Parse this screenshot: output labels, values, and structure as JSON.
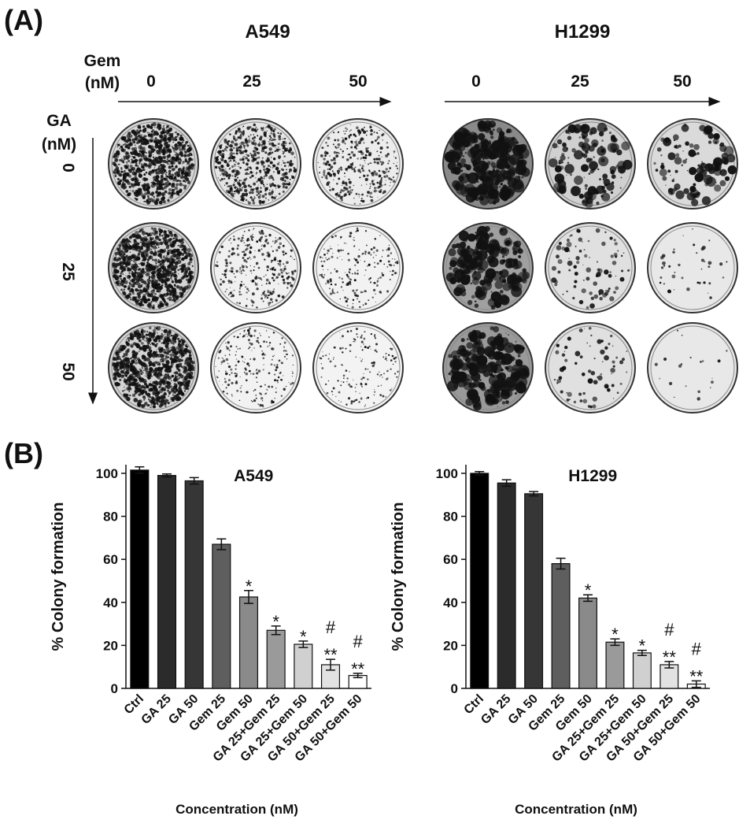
{
  "panel_a": {
    "label": "(A)",
    "lines": [
      "A549",
      "H1299"
    ],
    "gem_label": [
      "Gem",
      "(nM)"
    ],
    "gem_doses": [
      "0",
      "25",
      "50"
    ],
    "ga_label": [
      "GA",
      "(nM)"
    ],
    "ga_doses": [
      "0",
      "25",
      "50"
    ]
  },
  "panel_b": {
    "label": "(B)"
  },
  "chart_data": [
    {
      "type": "bar",
      "title": "A549",
      "y_label": "% Colony formation",
      "x_label": "Concentration (nM)",
      "categories": [
        "Ctrl",
        "GA 25",
        "GA 50",
        "Gem 25",
        "Gem 50",
        "GA 25+Gem 25",
        "GA 25+Gem 50",
        "GA 50+Gem 25",
        "GA 50+Gem 50"
      ],
      "values": [
        101.5,
        99,
        96.5,
        67,
        42.5,
        27,
        20.5,
        11,
        6
      ],
      "errors": [
        1.5,
        0.7,
        1.5,
        2.5,
        3,
        2,
        1.5,
        2.5,
        1
      ],
      "colors": [
        "#000000",
        "#2b2b2b",
        "#363636",
        "#5e5e5e",
        "#8a8a8a",
        "#9a9a9a",
        "#d0d0d0",
        "#e2e2e2",
        "#ffffff"
      ],
      "annotations": [
        null,
        null,
        null,
        null,
        [
          "*"
        ],
        [
          "*"
        ],
        [
          "*"
        ],
        [
          "#",
          "**"
        ],
        [
          "#",
          "**"
        ]
      ],
      "ylim": [
        0,
        104
      ],
      "yticks": [
        0,
        20,
        40,
        60,
        80,
        100
      ]
    },
    {
      "type": "bar",
      "title": "H1299",
      "y_label": "% Colony formation",
      "x_label": "Concentration (nM)",
      "categories": [
        "Ctrl",
        "GA 25",
        "GA 50",
        "Gem 25",
        "Gem 50",
        "GA 25+Gem 25",
        "GA 25+Gem 50",
        "GA 50+Gem 25",
        "GA 50+Gem 50"
      ],
      "values": [
        100,
        95.5,
        90.5,
        58,
        42,
        21.5,
        16.5,
        11,
        2
      ],
      "errors": [
        0.8,
        1.5,
        1,
        2.5,
        1.5,
        1.5,
        1.2,
        1.5,
        1.5
      ],
      "colors": [
        "#000000",
        "#2b2b2b",
        "#363636",
        "#5e5e5e",
        "#8a8a8a",
        "#9a9a9a",
        "#d0d0d0",
        "#e2e2e2",
        "#ffffff"
      ],
      "annotations": [
        null,
        null,
        null,
        null,
        [
          "*"
        ],
        [
          "*"
        ],
        [
          "*"
        ],
        [
          "#",
          "**"
        ],
        [
          "#",
          "**"
        ]
      ],
      "ylim": [
        0,
        104
      ],
      "yticks": [
        0,
        20,
        40,
        60,
        80,
        100
      ]
    }
  ]
}
